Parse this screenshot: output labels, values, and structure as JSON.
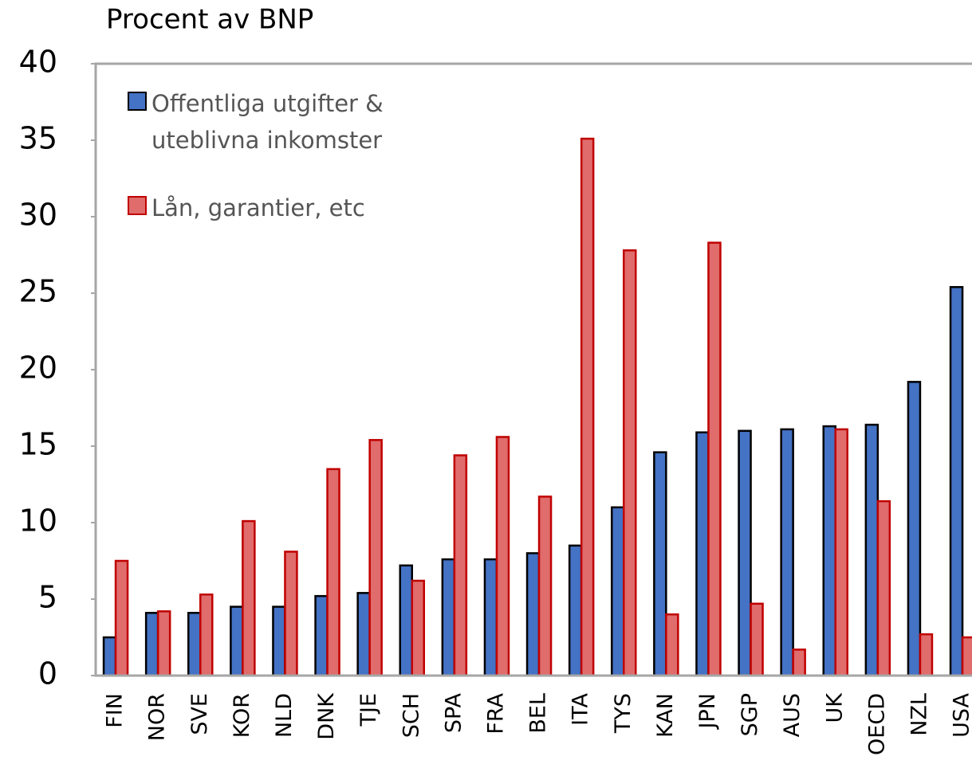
{
  "chart_data": {
    "type": "bar",
    "title": "Procent av BNP",
    "categories": [
      "FIN",
      "NOR",
      "SVE",
      "KOR",
      "NLD",
      "DNK",
      "TJE",
      "SCH",
      "SPA",
      "FRA",
      "BEL",
      "ITA",
      "TYS",
      "KAN",
      "JPN",
      "SGP",
      "AUS",
      "UK",
      "OECD",
      "NZL",
      "USA"
    ],
    "series": [
      {
        "name": "Offentliga utgifter & uteblivna inkomster",
        "color": "#4472c4",
        "edge": "#000000",
        "values": [
          2.5,
          4.1,
          4.1,
          4.5,
          4.5,
          5.2,
          5.4,
          7.2,
          7.6,
          7.6,
          8.0,
          8.5,
          11.0,
          14.6,
          15.9,
          16.0,
          16.1,
          16.3,
          16.4,
          19.2,
          25.4
        ]
      },
      {
        "name": "Lån, garantier, etc",
        "color": "#e06c6c",
        "edge": "#c00000",
        "values": [
          7.5,
          4.2,
          5.3,
          10.1,
          8.1,
          13.5,
          15.4,
          6.2,
          14.4,
          15.6,
          11.7,
          35.1,
          27.8,
          4.0,
          28.3,
          4.7,
          1.7,
          16.1,
          11.4,
          2.7,
          2.5
        ]
      }
    ],
    "ylim": [
      0,
      40
    ],
    "yticks": [
      0,
      5,
      10,
      15,
      20,
      25,
      30,
      35,
      40
    ],
    "grid": false,
    "legend": "upper left"
  }
}
